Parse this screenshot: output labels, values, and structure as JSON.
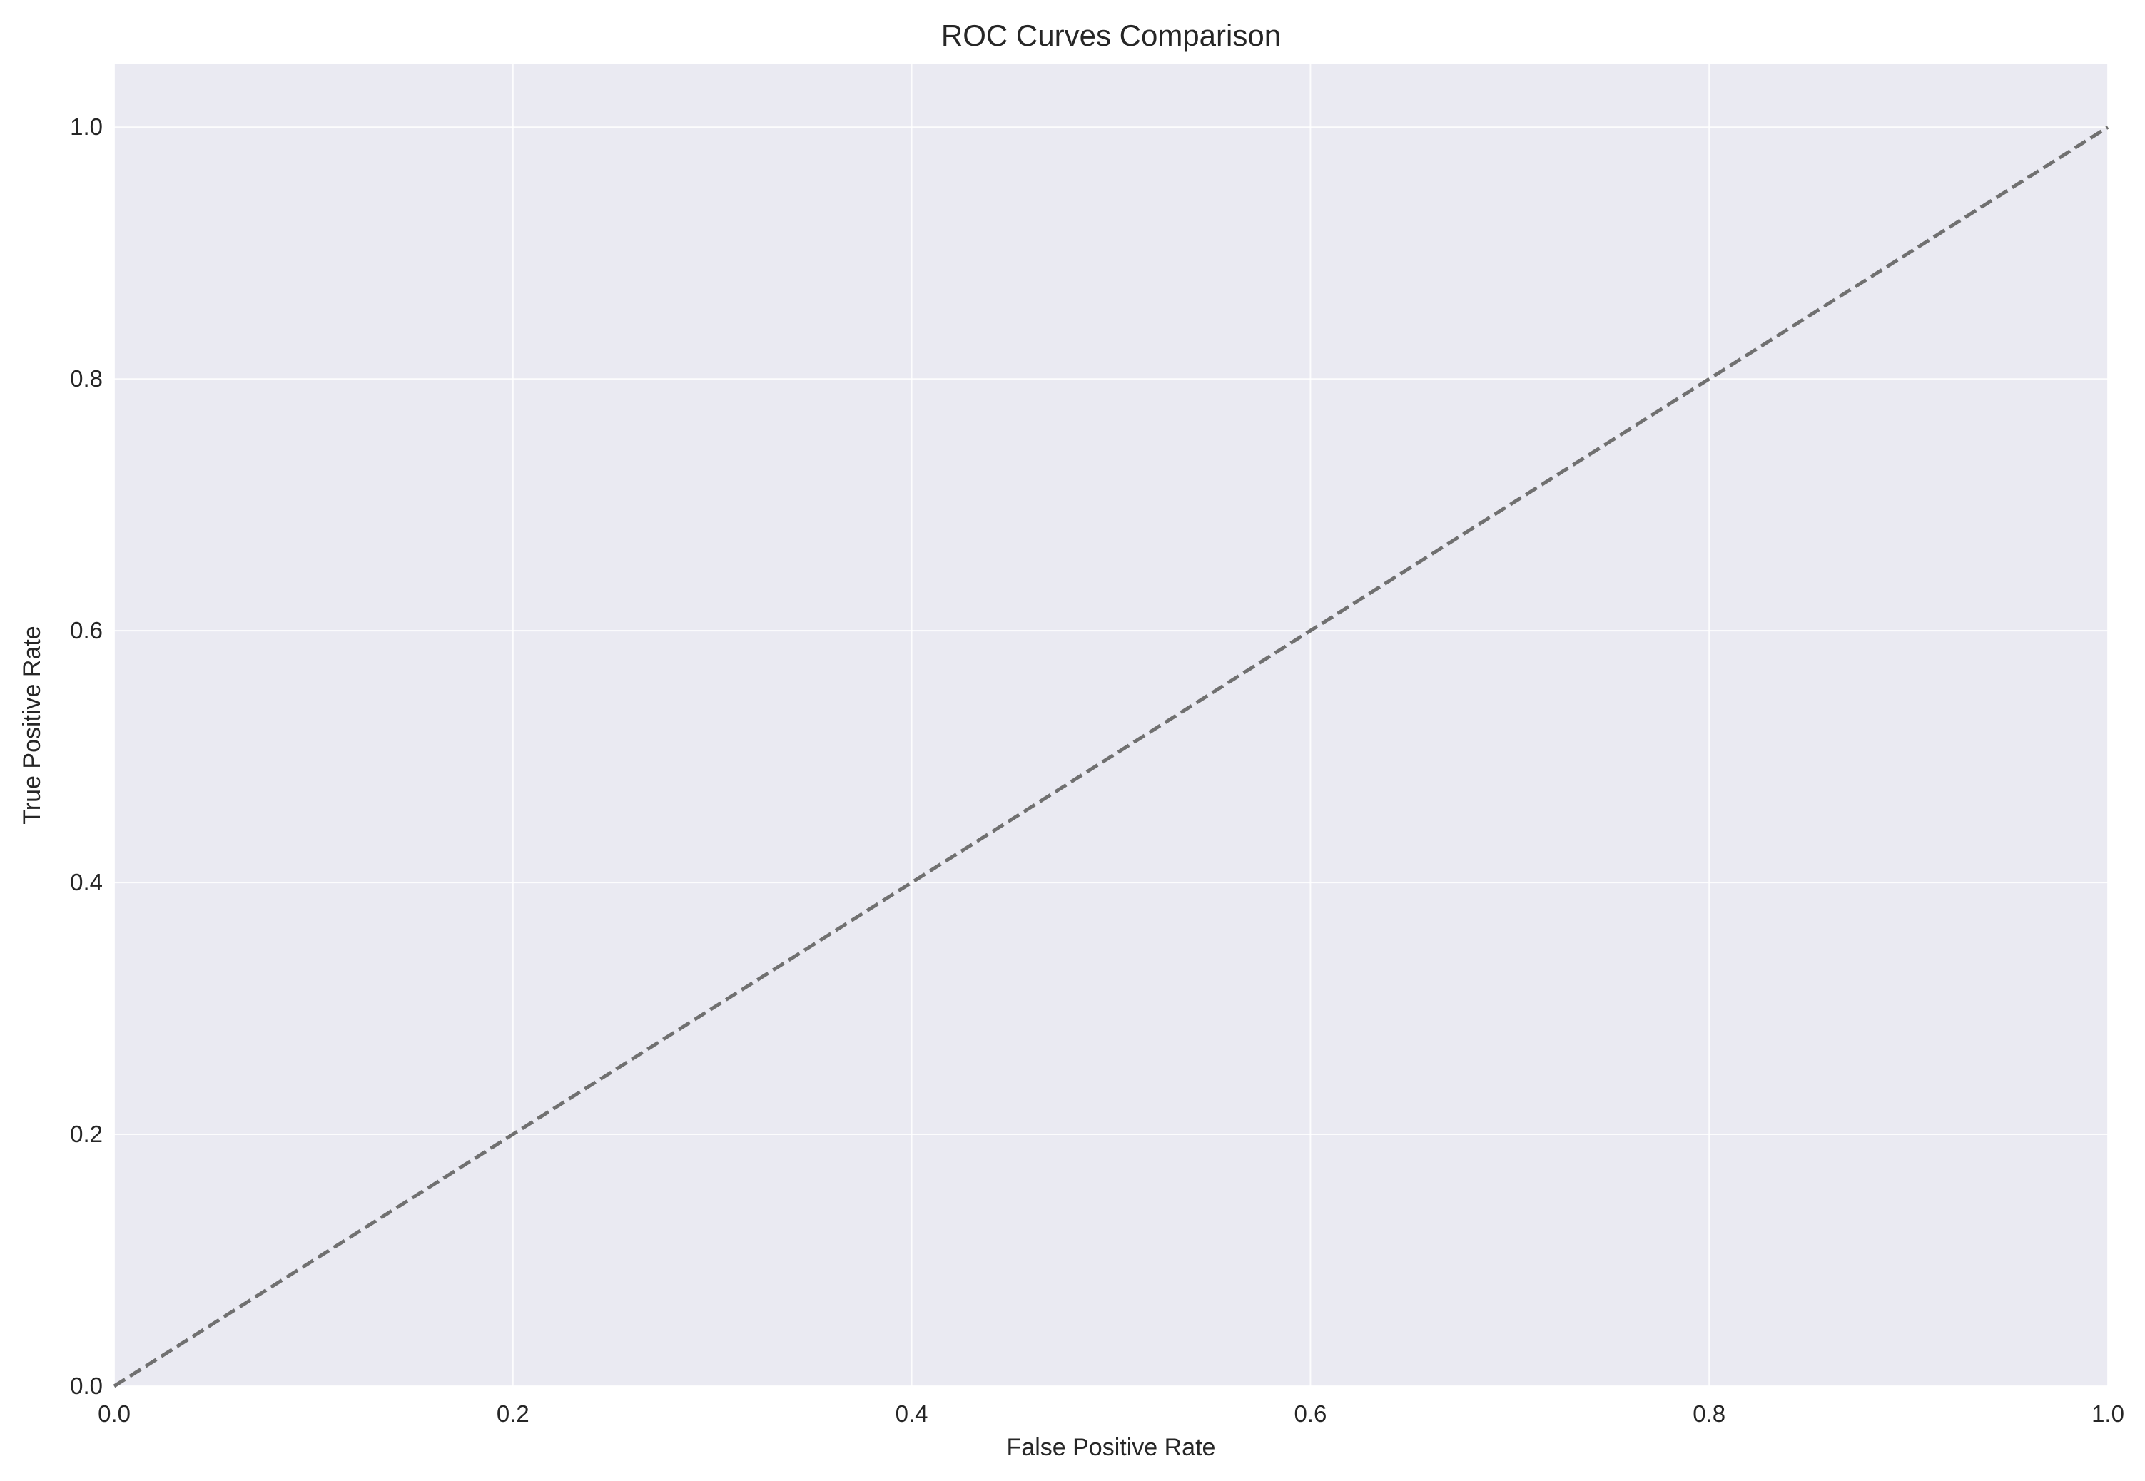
{
  "chart_data": {
    "type": "line",
    "title": "ROC Curves Comparison",
    "xlabel": "False Positive Rate",
    "ylabel": "True Positive Rate",
    "xlim": [
      0.0,
      1.0
    ],
    "ylim": [
      0.0,
      1.05
    ],
    "x_ticks": [
      "0.0",
      "0.2",
      "0.4",
      "0.6",
      "0.8",
      "1.0"
    ],
    "y_ticks": [
      "0.0",
      "0.2",
      "0.4",
      "0.6",
      "0.8",
      "1.0"
    ],
    "grid": true,
    "series": [
      {
        "line_style": "dashed",
        "color": "#707070",
        "x": [
          0.0,
          1.0
        ],
        "y": [
          0.0,
          1.0
        ]
      }
    ]
  },
  "colors": {
    "plot_background": "#eaeaf2",
    "grid": "#ffffff",
    "text": "#262626"
  }
}
